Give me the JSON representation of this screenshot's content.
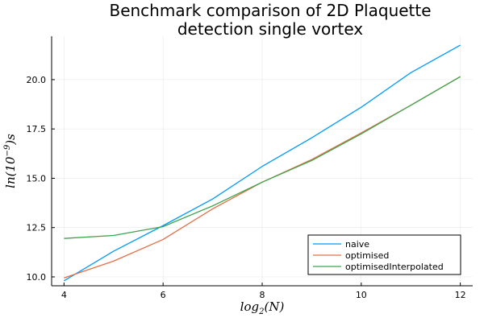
{
  "chart_data": {
    "type": "line",
    "title": [
      "Benchmark comparison of 2D Plaquette",
      "detection single vortex"
    ],
    "xlabel": {
      "base": "log",
      "sub": "2",
      "arg": "(N)"
    },
    "ylabel": {
      "base": "ln(10",
      "sup": "−9",
      "tail": ")s"
    },
    "xlim": [
      3.75,
      12.25
    ],
    "ylim": [
      9.55,
      22.2
    ],
    "xticks": [
      4,
      6,
      8,
      10,
      12
    ],
    "yticks": [
      10.0,
      12.5,
      15.0,
      17.5,
      20.0
    ],
    "xtick_labels": [
      "4",
      "6",
      "8",
      "10",
      "12"
    ],
    "ytick_labels": [
      "10.0",
      "12.5",
      "15.0",
      "17.5",
      "20.0"
    ],
    "grid": true,
    "legend_position": "bottom-right",
    "x": [
      4,
      5,
      6,
      7,
      8,
      9,
      10,
      11,
      12
    ],
    "series": [
      {
        "name": "naive",
        "color": "#009AFA",
        "values": [
          9.8,
          11.3,
          12.6,
          13.95,
          15.6,
          17.05,
          18.6,
          20.35,
          21.75
        ]
      },
      {
        "name": "optimised",
        "color": "#E26F46",
        "values": [
          9.95,
          10.8,
          11.9,
          13.45,
          14.8,
          15.95,
          17.3,
          18.7,
          20.15
        ]
      },
      {
        "name": "optimisedInterpolated",
        "color": "#3DA44D",
        "values": [
          11.95,
          12.1,
          12.55,
          13.6,
          14.8,
          15.9,
          17.25,
          18.7,
          20.15
        ]
      }
    ]
  }
}
